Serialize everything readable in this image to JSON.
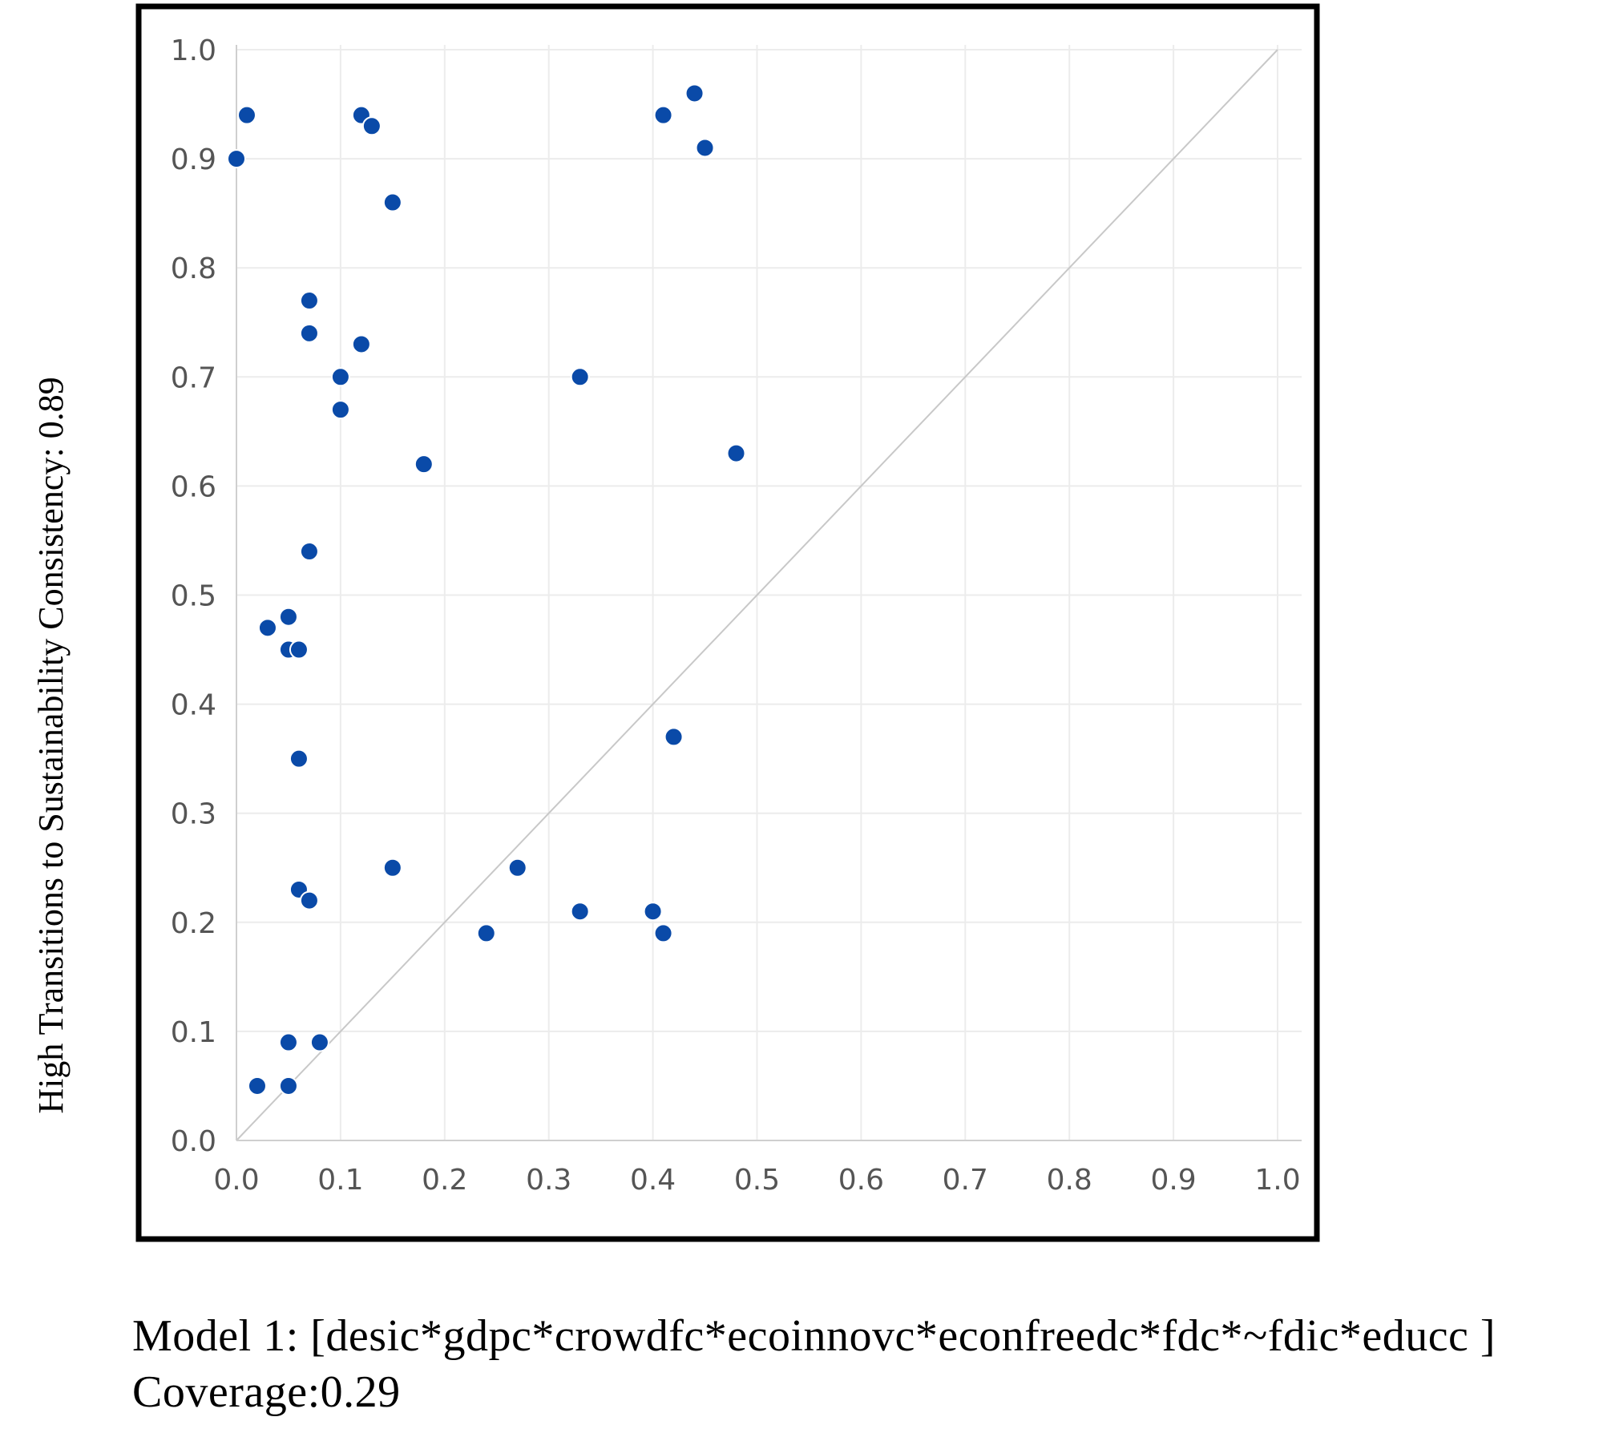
{
  "chart_data": {
    "type": "scatter",
    "title": "",
    "xlabel": "",
    "ylabel": "High Transitions to Sustainability Consistency: 0.89",
    "xlim": [
      0,
      1
    ],
    "ylim": [
      0,
      1
    ],
    "xticks": [
      "0.0",
      "0.1",
      "0.2",
      "0.3",
      "0.4",
      "0.5",
      "0.6",
      "0.7",
      "0.8",
      "0.9",
      "1.0"
    ],
    "yticks": [
      "0.0",
      "0.1",
      "0.2",
      "0.3",
      "0.4",
      "0.5",
      "0.6",
      "0.7",
      "0.8",
      "0.9",
      "1.0"
    ],
    "grid": true,
    "diagonal_reference": true,
    "point_color": "#0a4aa8",
    "points": [
      {
        "x": 0.0,
        "y": 0.9
      },
      {
        "x": 0.01,
        "y": 0.94
      },
      {
        "x": 0.12,
        "y": 0.94
      },
      {
        "x": 0.13,
        "y": 0.93
      },
      {
        "x": 0.15,
        "y": 0.86
      },
      {
        "x": 0.44,
        "y": 0.96
      },
      {
        "x": 0.41,
        "y": 0.94
      },
      {
        "x": 0.45,
        "y": 0.91
      },
      {
        "x": 0.07,
        "y": 0.77
      },
      {
        "x": 0.07,
        "y": 0.74
      },
      {
        "x": 0.12,
        "y": 0.73
      },
      {
        "x": 0.1,
        "y": 0.7
      },
      {
        "x": 0.1,
        "y": 0.67
      },
      {
        "x": 0.33,
        "y": 0.7
      },
      {
        "x": 0.18,
        "y": 0.62
      },
      {
        "x": 0.48,
        "y": 0.63
      },
      {
        "x": 0.07,
        "y": 0.54
      },
      {
        "x": 0.03,
        "y": 0.47
      },
      {
        "x": 0.05,
        "y": 0.48
      },
      {
        "x": 0.05,
        "y": 0.45
      },
      {
        "x": 0.06,
        "y": 0.45
      },
      {
        "x": 0.06,
        "y": 0.35
      },
      {
        "x": 0.42,
        "y": 0.37
      },
      {
        "x": 0.06,
        "y": 0.23
      },
      {
        "x": 0.07,
        "y": 0.22
      },
      {
        "x": 0.15,
        "y": 0.25
      },
      {
        "x": 0.27,
        "y": 0.25
      },
      {
        "x": 0.24,
        "y": 0.19
      },
      {
        "x": 0.33,
        "y": 0.21
      },
      {
        "x": 0.4,
        "y": 0.21
      },
      {
        "x": 0.41,
        "y": 0.19
      },
      {
        "x": 0.05,
        "y": 0.09
      },
      {
        "x": 0.08,
        "y": 0.09
      },
      {
        "x": 0.02,
        "y": 0.05
      },
      {
        "x": 0.05,
        "y": 0.05
      }
    ]
  },
  "caption": {
    "model": "Model 1: [desic*gdpc*crowdfc*ecoinnovc*econfreedc*fdc*~fdic*educc ]",
    "coverage": "Coverage:0.29"
  }
}
